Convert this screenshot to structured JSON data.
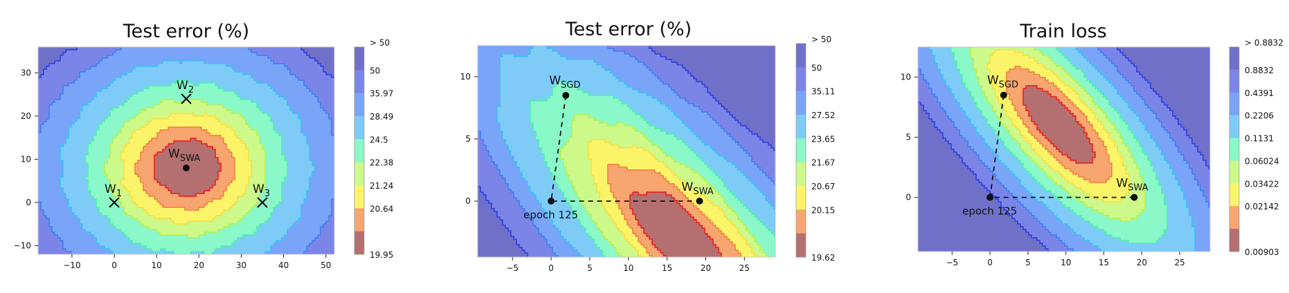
{
  "chart_data": [
    {
      "type": "contour",
      "title": "Test error (%)",
      "xlim": [
        -18,
        52
      ],
      "ylim": [
        -12,
        36
      ],
      "xticks": [
        -10,
        0,
        10,
        20,
        30,
        40,
        50
      ],
      "yticks": [
        -10,
        0,
        10,
        20,
        30
      ],
      "center": [
        17,
        8
      ],
      "colorbar": [
        "> 50",
        "50",
        "35.97",
        "28.49",
        "24.5",
        "22.38",
        "21.24",
        "20.64",
        "19.95"
      ],
      "points": [
        {
          "base": "W",
          "sub": "1",
          "x": 0,
          "y": 0,
          "marker": "x"
        },
        {
          "base": "W",
          "sub": "2",
          "x": 17,
          "y": 24,
          "marker": "x"
        },
        {
          "base": "W",
          "sub": "3",
          "x": 35,
          "y": 0,
          "marker": "x"
        },
        {
          "base": "W",
          "sub": "SWA",
          "x": 17,
          "y": 8,
          "marker": "dot"
        }
      ],
      "path": []
    },
    {
      "type": "contour",
      "title": "Test error (%)",
      "xlim": [
        -9.5,
        29
      ],
      "ylim": [
        -4.5,
        12.5
      ],
      "xticks": [
        -5,
        0,
        5,
        10,
        15,
        20,
        25
      ],
      "yticks": [
        0,
        5,
        10
      ],
      "center": [
        17,
        -3
      ],
      "colorbar": [
        "> 50",
        "50",
        "35.11",
        "27.52",
        "23.65",
        "21.67",
        "20.67",
        "20.15",
        "19.62"
      ],
      "points": [
        {
          "base": "W",
          "sub": "SGD",
          "x": 1.9,
          "y": 8.5,
          "marker": "dot"
        },
        {
          "base": "W",
          "sub": "SWA",
          "x": 19.2,
          "y": 0,
          "marker": "dot"
        },
        {
          "base": "epoch 125",
          "sub": "",
          "x": 0,
          "y": 0,
          "marker": "dot"
        }
      ],
      "path": [
        [
          1.9,
          8.5
        ],
        [
          0,
          0
        ],
        [
          19.2,
          0
        ]
      ]
    },
    {
      "type": "contour",
      "title": "Train loss",
      "xlim": [
        -9.5,
        29
      ],
      "ylim": [
        -4.5,
        12.5
      ],
      "xticks": [
        -5,
        0,
        5,
        10,
        15,
        20,
        25
      ],
      "yticks": [
        0,
        5,
        10
      ],
      "center": [
        8,
        6
      ],
      "colorbar": [
        "> 0.8832",
        "0.8832",
        "0.4391",
        "0.2206",
        "0.1131",
        "0.06024",
        "0.03422",
        "0.02142",
        "0.00903"
      ],
      "points": [
        {
          "base": "W",
          "sub": "SGD",
          "x": 1.8,
          "y": 8.5,
          "marker": "dot"
        },
        {
          "base": "W",
          "sub": "SWA",
          "x": 19,
          "y": 0,
          "marker": "dot"
        },
        {
          "base": "epoch 125",
          "sub": "",
          "x": 0,
          "y": 0,
          "marker": "dot"
        }
      ],
      "path": [
        [
          1.8,
          8.5
        ],
        [
          0,
          0
        ],
        [
          19,
          0
        ]
      ]
    }
  ],
  "colors": {
    "levels": [
      "#b46f70",
      "#f7a670",
      "#fbf469",
      "#cdf88a",
      "#8af8c8",
      "#7ecbf8",
      "#79a4f8",
      "#7b85e8",
      "#6f70c8"
    ],
    "lines": [
      "#e82020",
      "#f08040",
      "#f7e040",
      "#b8f050",
      "#50f0b0",
      "#40c0f0",
      "#4080f0",
      "#3040e0"
    ]
  }
}
